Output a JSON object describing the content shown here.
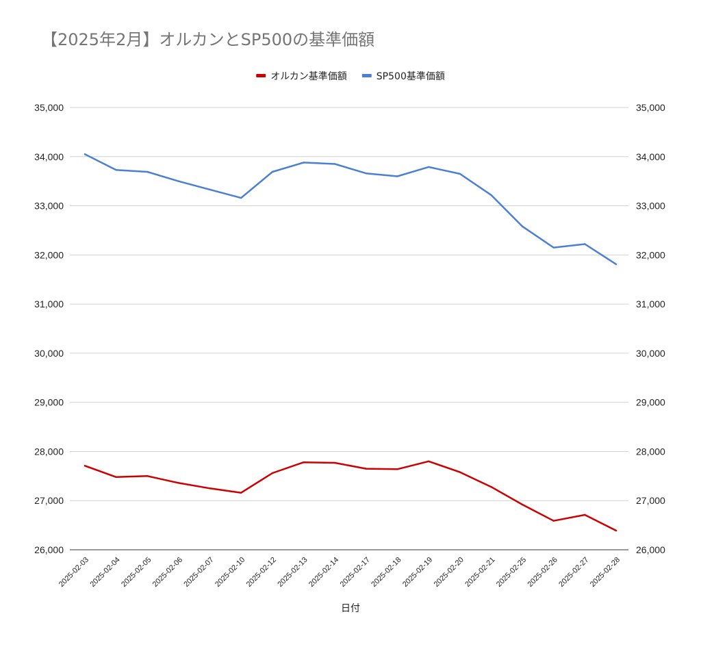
{
  "chart_data": {
    "type": "line",
    "title": "【2025年2月】オルカンとSP500の基準価額",
    "xlabel": "日付",
    "ylabel": "",
    "ylim": [
      26000,
      35000
    ],
    "yticks": [
      "35,000",
      "34,000",
      "33,000",
      "32,000",
      "31,000",
      "30,000",
      "29,000",
      "28,000",
      "27,000",
      "26,000"
    ],
    "ytick_values": [
      35000,
      34000,
      33000,
      32000,
      31000,
      30000,
      29000,
      28000,
      27000,
      26000
    ],
    "categories": [
      "2025-02-03",
      "2025-02-04",
      "2025-02-05",
      "2025-02-06",
      "2025-02-07",
      "2025-02-10",
      "2025-02-12",
      "2025-02-13",
      "2025-02-14",
      "2025-02-17",
      "2025-02-18",
      "2025-02-19",
      "2025-02-20",
      "2025-02-21",
      "2025-02-25",
      "2025-02-26",
      "2025-02-27",
      "2025-02-28"
    ],
    "legend_position": "top-center",
    "grid": true,
    "series": [
      {
        "name": "オルカン基準価額",
        "color": "#cc0000",
        "values": [
          27710,
          27480,
          27500,
          27360,
          27250,
          27160,
          27560,
          27780,
          27770,
          27650,
          27640,
          27800,
          27580,
          27280,
          26920,
          26590,
          26710,
          26390
        ]
      },
      {
        "name": "SP500基準価額",
        "color": "#4a7fd4",
        "values": [
          34050,
          33730,
          33690,
          33500,
          33330,
          33160,
          33690,
          33880,
          33850,
          33660,
          33600,
          33790,
          33650,
          33220,
          32580,
          32150,
          32220,
          31810
        ]
      }
    ]
  }
}
